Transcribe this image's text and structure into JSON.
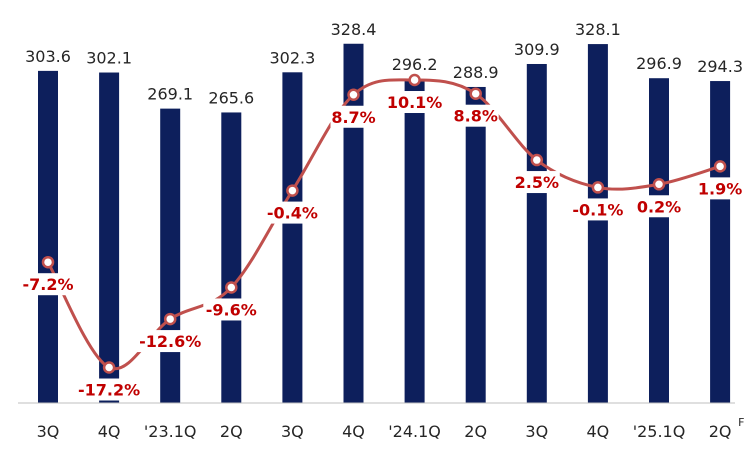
{
  "chart_data": {
    "type": "bar",
    "categories": [
      "3Q",
      "4Q",
      "'23.1Q",
      "2Q",
      "3Q",
      "4Q",
      "'24.1Q",
      "2Q",
      "3Q",
      "4Q",
      "'25.1Q",
      "2Q"
    ],
    "category_superscripts": [
      "",
      "",
      "",
      "",
      "",
      "",
      "",
      "",
      "",
      "",
      "",
      "F"
    ],
    "series": [
      {
        "type": "bar",
        "values": [
          303.6,
          302.1,
          269.1,
          265.6,
          302.3,
          328.4,
          296.2,
          288.9,
          309.9,
          328.1,
          296.9,
          294.3
        ],
        "value_labels": [
          "303.6",
          "302.1",
          "269.1",
          "265.6",
          "302.3",
          "328.4",
          "296.2",
          "288.9",
          "309.9",
          "328.1",
          "296.9",
          "294.3"
        ],
        "color": "#0d1f5c"
      },
      {
        "type": "line",
        "values": [
          -7.2,
          -17.2,
          -12.6,
          -9.6,
          -0.4,
          8.7,
          10.1,
          8.8,
          2.5,
          -0.1,
          0.2,
          1.9
        ],
        "value_labels": [
          "-7.2%",
          "-17.2%",
          "-12.6%",
          "-9.6%",
          "-0.4%",
          "8.7%",
          "10.1%",
          "8.8%",
          "2.5%",
          "-0.1%",
          "0.2%",
          "1.9%"
        ],
        "color": "#c0504d",
        "label_color": "#c00000"
      }
    ],
    "bar_axis_range": [
      0,
      330
    ],
    "line_axis_range": [
      -20,
      12
    ],
    "grid": false,
    "legend": "none"
  }
}
